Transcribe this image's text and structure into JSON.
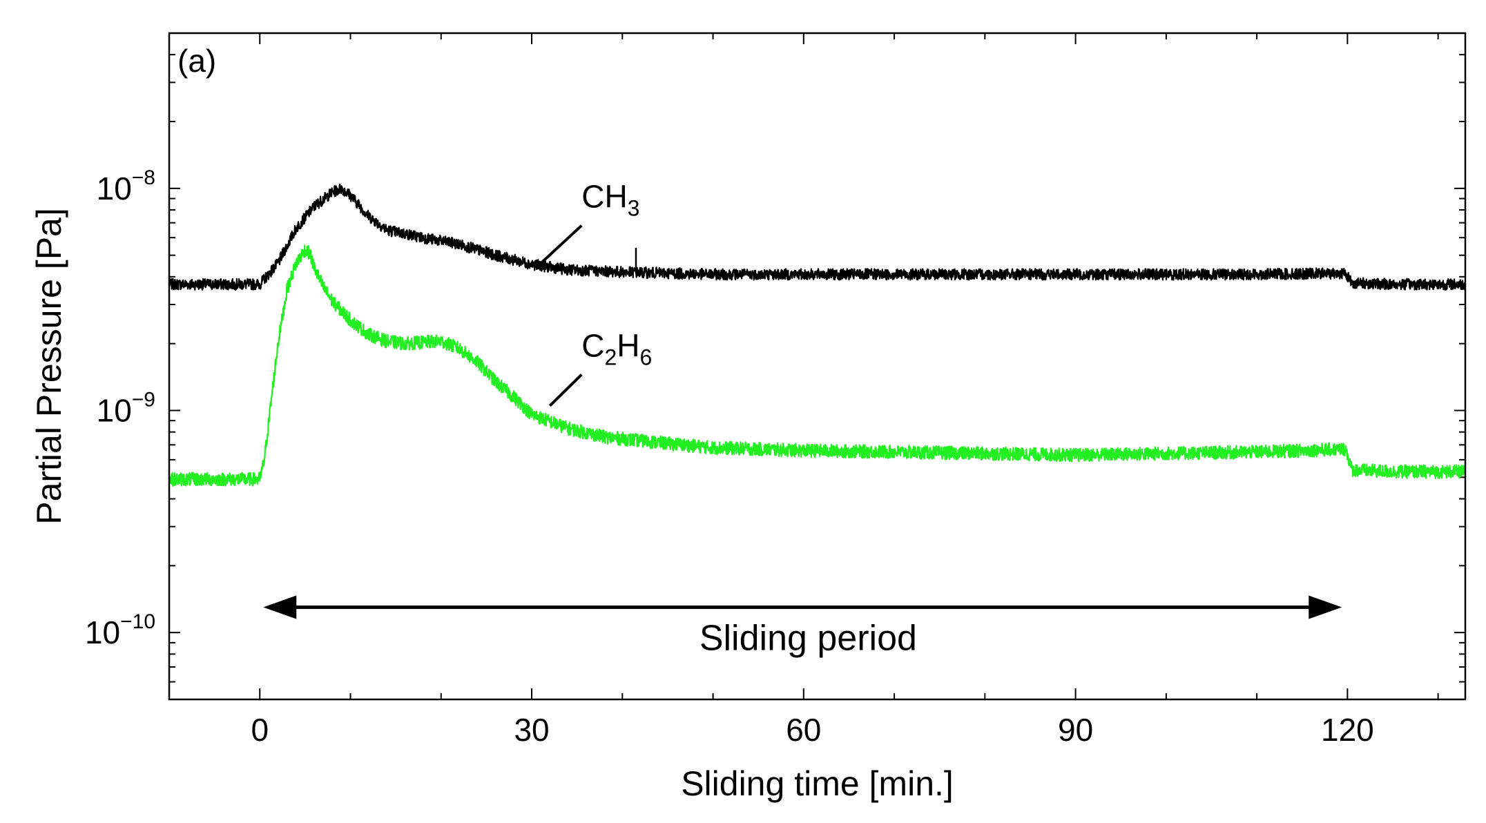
{
  "chart_data": {
    "type": "line",
    "panel_label": "(a)",
    "xlabel": "Sliding time [min.]",
    "ylabel": "Partial Pressure [Pa]",
    "xlim": [
      -10,
      133
    ],
    "ylim": [
      5e-11,
      5e-08
    ],
    "yscale": "log",
    "x_ticks": [
      0,
      30,
      60,
      90,
      120
    ],
    "x_tick_labels": [
      "0",
      "30",
      "60",
      "90",
      "120"
    ],
    "y_ticks": [
      {
        "value": 1e-08,
        "base": "10",
        "exp": "−8"
      },
      {
        "value": 1e-09,
        "base": "10",
        "exp": "−9"
      },
      {
        "value": 1e-10,
        "base": "10",
        "exp": "−10"
      }
    ],
    "series": [
      {
        "name": "CH3",
        "label_main": "CH",
        "label_sub": "3",
        "color": "#000000",
        "x": [
          -10,
          0,
          2,
          4,
          6,
          8,
          9,
          10,
          12,
          14,
          18,
          22,
          26,
          30,
          34,
          40,
          50,
          70,
          90,
          110,
          119.8,
          120.5,
          125,
          133
        ],
        "y": [
          3.7e-09,
          3.7e-09,
          4.6e-09,
          6.6e-09,
          8.3e-09,
          9.6e-09,
          1e-08,
          9.3e-09,
          7.5e-09,
          6.5e-09,
          6e-09,
          5.6e-09,
          5e-09,
          4.55e-09,
          4.3e-09,
          4.2e-09,
          4.1e-09,
          4.1e-09,
          4.1e-09,
          4.1e-09,
          4.15e-09,
          3.75e-09,
          3.7e-09,
          3.7e-09
        ]
      },
      {
        "name": "C2H6",
        "label_main": "C",
        "label_sub": "2",
        "label_main2": "H",
        "label_sub2": "6",
        "color": "#22ee22",
        "x": [
          -10,
          0,
          0.5,
          1,
          2,
          3,
          4,
          5,
          5.5,
          6,
          7,
          8,
          10,
          12,
          14,
          16,
          20,
          22,
          24,
          26,
          28,
          30,
          34,
          38,
          45,
          50,
          60,
          70,
          80,
          90,
          100,
          110,
          119.8,
          120.5,
          125,
          133
        ],
        "y": [
          4.9e-10,
          4.9e-10,
          6e-10,
          9e-10,
          2e-09,
          3.5e-09,
          4.6e-09,
          5.3e-09,
          5.1e-09,
          4.4e-09,
          3.6e-09,
          3.1e-09,
          2.55e-09,
          2.2e-09,
          2.05e-09,
          2e-09,
          2.05e-09,
          1.9e-09,
          1.65e-09,
          1.35e-09,
          1.15e-09,
          9.6e-10,
          8.3e-10,
          7.6e-10,
          7.1e-10,
          6.8e-10,
          6.6e-10,
          6.5e-10,
          6.4e-10,
          6.3e-10,
          6.4e-10,
          6.5e-10,
          6.7e-10,
          5.4e-10,
          5.3e-10,
          5.3e-10
        ]
      }
    ],
    "annotations": [
      {
        "text": "Sliding period",
        "type": "double-arrow",
        "x_start": 0,
        "x_end": 119,
        "y": 1.3e-10
      }
    ]
  }
}
